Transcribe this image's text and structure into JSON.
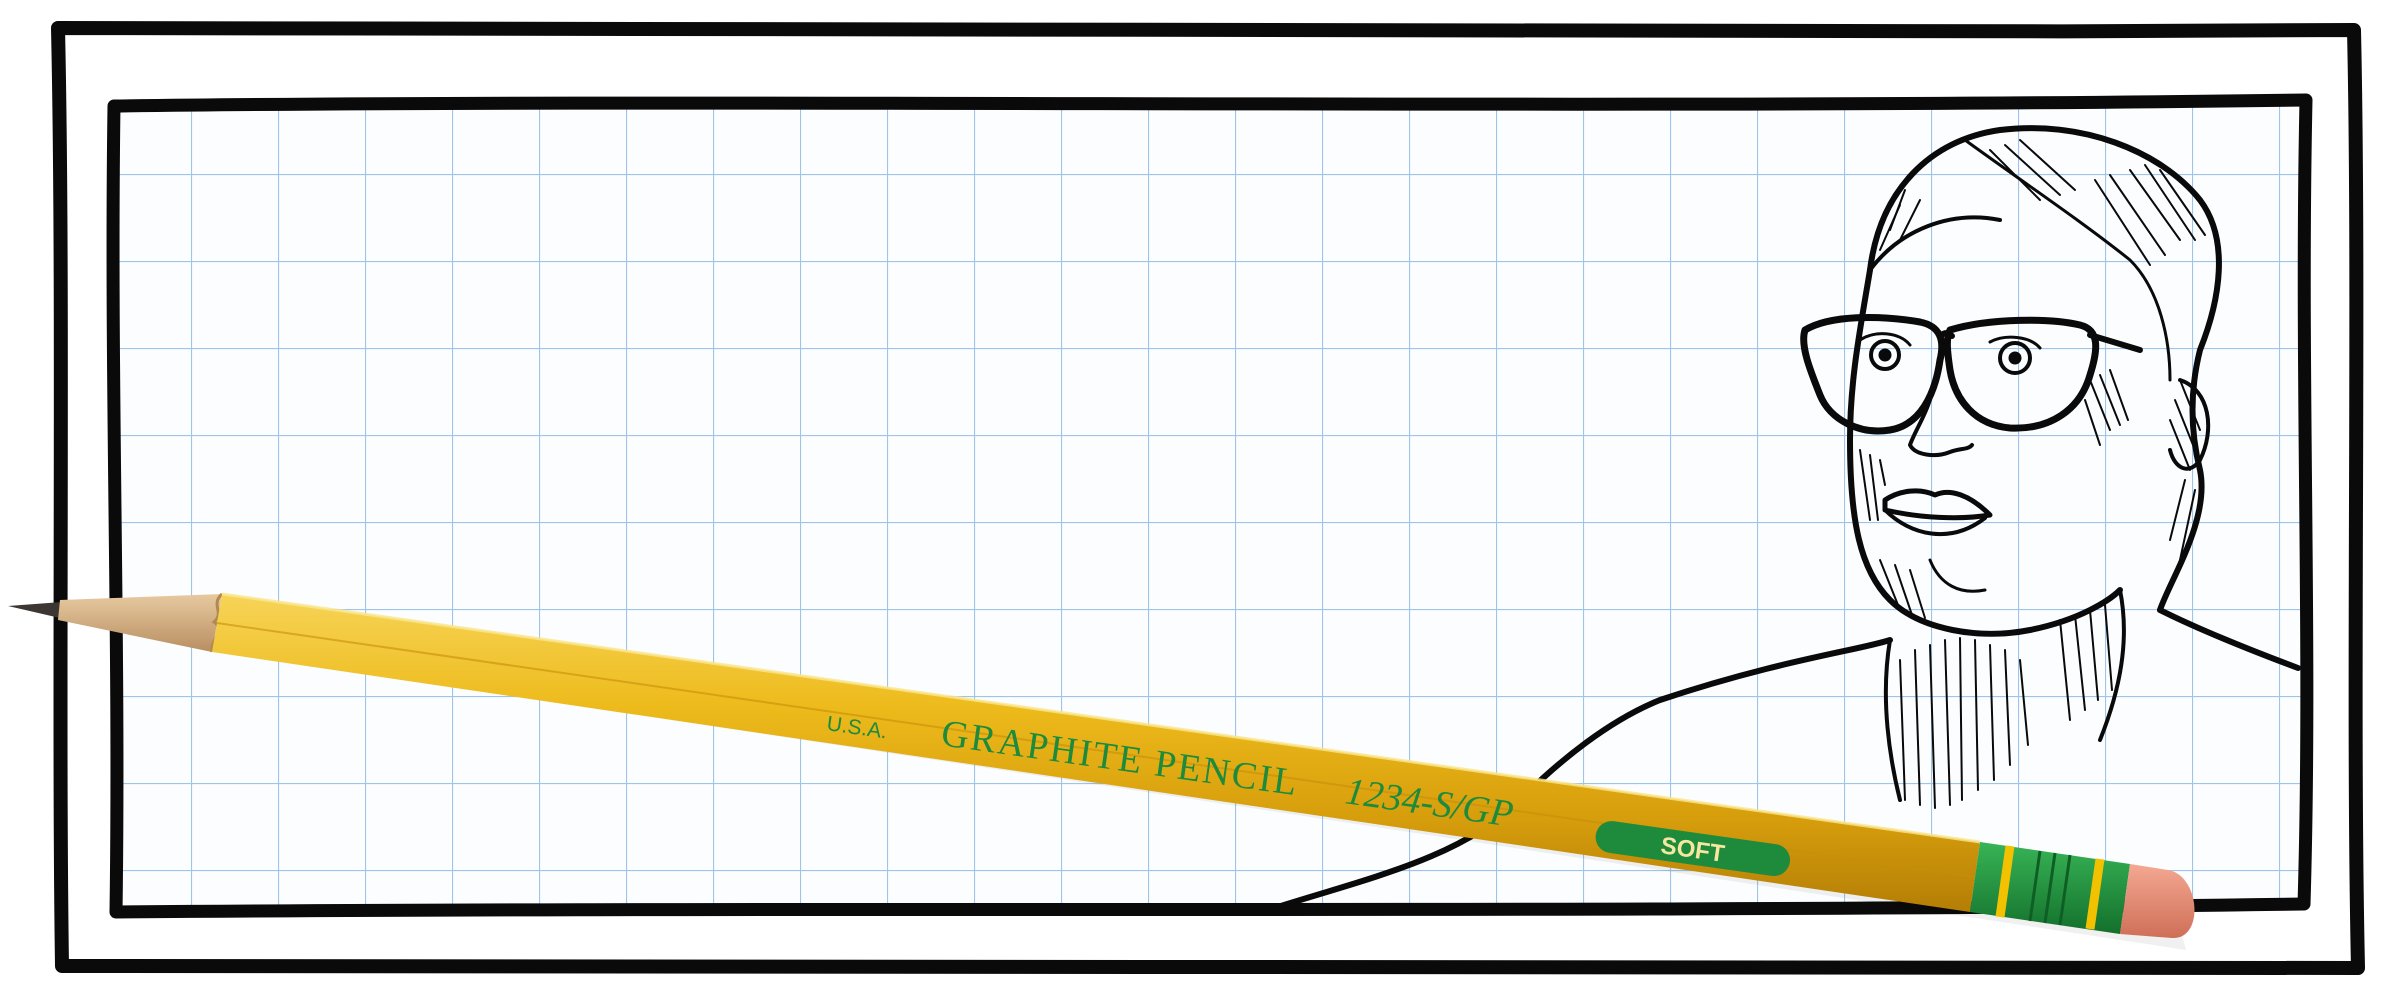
{
  "pencil": {
    "origin_label": "U.S.A.",
    "brand_label": "GRAPHITE PENCIL",
    "model_label": "1234-S/GP",
    "grade_label": "SOFT"
  },
  "colors": {
    "grid_line": "#9fc4ea",
    "paper": "#ffffff",
    "frame_ink": "#0a0a0a",
    "pencil_body": "#e8b214",
    "pencil_text": "#1e8a3c",
    "ferrule_green": "#1f9a3c",
    "ferrule_yellow": "#f2c200",
    "eraser": "#e58c76",
    "wood": "#d8b48a",
    "graphite": "#3c3732"
  },
  "icons": {
    "portrait": "woman-with-glasses-line-drawing",
    "pencil": "yellow-graphite-pencil"
  }
}
